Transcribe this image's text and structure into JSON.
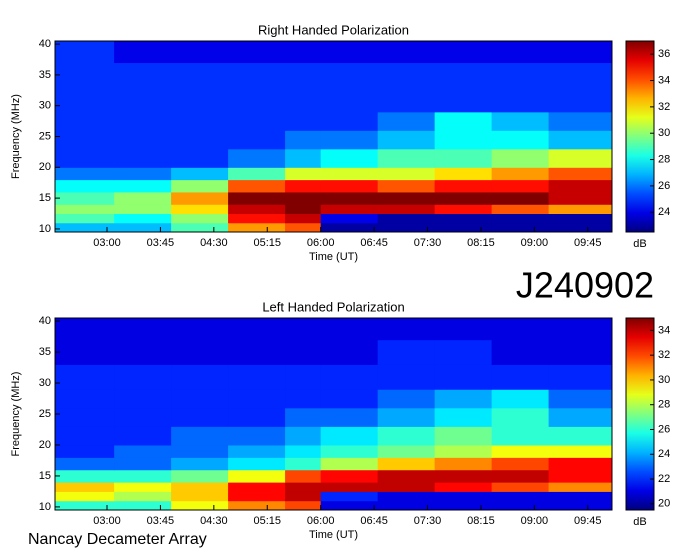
{
  "chart_data": [
    {
      "type": "heatmap",
      "title": "Right Handed Polarization",
      "xlabel": "Time (UT)",
      "ylabel": "Frequency (MHz)",
      "xlim": [
        2.27,
        10.09
      ],
      "ylim": [
        9.5,
        40.5
      ],
      "xticks": [
        {
          "value": 3,
          "label": "03:00"
        },
        {
          "value": 3.75,
          "label": "03:45"
        },
        {
          "value": 4.5,
          "label": "04:30"
        },
        {
          "value": 5.25,
          "label": "05:15"
        },
        {
          "value": 6,
          "label": "06:00"
        },
        {
          "value": 6.75,
          "label": "06:45"
        },
        {
          "value": 7.5,
          "label": "07:30"
        },
        {
          "value": 8.25,
          "label": "08:15"
        },
        {
          "value": 9,
          "label": "09:00"
        },
        {
          "value": 9.75,
          "label": "09:45"
        }
      ],
      "yticks": [
        10,
        15,
        20,
        25,
        30,
        35,
        40
      ],
      "xbins": [
        2.27,
        3.1,
        3.9,
        4.7,
        5.5,
        6.0,
        6.8,
        7.6,
        8.4,
        9.2,
        10.09
      ],
      "ybins": [
        9.5,
        11,
        12.5,
        14,
        16,
        18,
        20,
        23,
        26,
        29,
        33,
        37,
        40.5
      ],
      "z": [
        [
          27,
          27,
          29,
          33,
          34,
          23,
          23,
          23,
          23,
          23
        ],
        [
          29,
          28,
          30,
          35,
          36,
          24,
          23,
          23,
          23,
          23
        ],
        [
          30,
          30,
          32,
          36,
          37,
          36,
          36,
          35,
          34,
          33
        ],
        [
          29,
          30,
          33,
          37,
          37,
          37,
          37,
          37,
          37,
          36
        ],
        [
          28,
          28,
          30,
          34,
          35,
          35,
          34,
          35,
          35,
          36
        ],
        [
          26,
          26,
          27,
          29,
          31,
          31,
          31,
          32,
          33,
          34
        ],
        [
          25,
          25,
          25,
          26,
          27,
          28,
          29,
          29,
          30,
          31
        ],
        [
          25,
          25,
          25,
          25,
          26,
          26,
          27,
          28,
          28,
          27
        ],
        [
          25,
          25,
          25,
          25,
          25,
          25,
          26,
          28,
          27,
          26
        ],
        [
          25,
          25,
          25,
          25,
          25,
          25,
          25,
          25,
          25,
          25
        ],
        [
          25,
          25,
          25,
          25,
          25,
          25,
          25,
          25,
          25,
          25
        ],
        [
          25,
          24,
          24,
          24,
          24,
          24,
          24,
          24,
          24,
          24
        ]
      ],
      "colormap": "jet",
      "zlim": [
        22.5,
        37
      ],
      "zticks": [
        24,
        26,
        28,
        30,
        32,
        34,
        36
      ],
      "colorbar_label": "dB"
    },
    {
      "type": "heatmap",
      "title": "Left Handed Polarization",
      "xlabel": "Time (UT)",
      "ylabel": "Frequency (MHz)",
      "xlim": [
        2.27,
        10.09
      ],
      "ylim": [
        9.5,
        40.5
      ],
      "xticks": [
        {
          "value": 3,
          "label": "03:00"
        },
        {
          "value": 3.75,
          "label": "03:45"
        },
        {
          "value": 4.5,
          "label": "04:30"
        },
        {
          "value": 5.25,
          "label": "05:15"
        },
        {
          "value": 6,
          "label": "06:00"
        },
        {
          "value": 6.75,
          "label": "06:45"
        },
        {
          "value": 7.5,
          "label": "07:30"
        },
        {
          "value": 8.25,
          "label": "08:15"
        },
        {
          "value": 9,
          "label": "09:00"
        },
        {
          "value": 9.75,
          "label": "09:45"
        }
      ],
      "yticks": [
        10,
        15,
        20,
        25,
        30,
        35,
        40
      ],
      "xbins": [
        2.27,
        3.1,
        3.9,
        4.7,
        5.5,
        6.0,
        6.8,
        7.6,
        8.4,
        9.2,
        10.09
      ],
      "ybins": [
        9.5,
        11,
        12.5,
        14,
        16,
        18,
        20,
        23,
        26,
        29,
        33,
        37,
        40.5
      ],
      "z": [
        [
          26,
          26,
          29,
          31,
          32,
          21,
          21,
          21,
          21,
          21
        ],
        [
          29,
          28,
          30,
          33,
          34,
          22,
          21,
          21,
          21,
          21
        ],
        [
          30,
          29,
          30,
          33,
          34,
          34,
          34,
          33,
          32,
          31
        ],
        [
          26,
          26,
          27,
          29,
          32,
          33,
          34,
          34,
          34,
          33
        ],
        [
          23,
          23,
          24,
          25,
          26,
          28,
          30,
          31,
          32,
          33
        ],
        [
          22,
          23,
          23,
          24,
          25,
          26,
          27,
          28,
          29,
          29
        ],
        [
          22,
          22,
          23,
          23,
          24,
          25,
          26,
          27,
          26,
          26
        ],
        [
          22,
          22,
          22,
          22,
          23,
          23,
          24,
          25,
          26,
          24
        ],
        [
          22,
          22,
          22,
          22,
          22,
          22,
          23,
          24,
          25,
          23
        ],
        [
          22,
          22,
          22,
          22,
          22,
          22,
          22,
          22,
          22,
          22
        ],
        [
          21,
          21,
          21,
          21,
          21,
          21,
          22,
          22,
          21,
          21
        ],
        [
          21,
          21,
          21,
          21,
          21,
          21,
          21,
          21,
          21,
          21
        ]
      ],
      "colormap": "jet",
      "zlim": [
        19.5,
        35
      ],
      "zticks": [
        20,
        22,
        24,
        26,
        28,
        30,
        32,
        34
      ],
      "colorbar_label": "dB"
    }
  ],
  "observation_id": "J240902",
  "instrument": "Nancay Decameter Array"
}
